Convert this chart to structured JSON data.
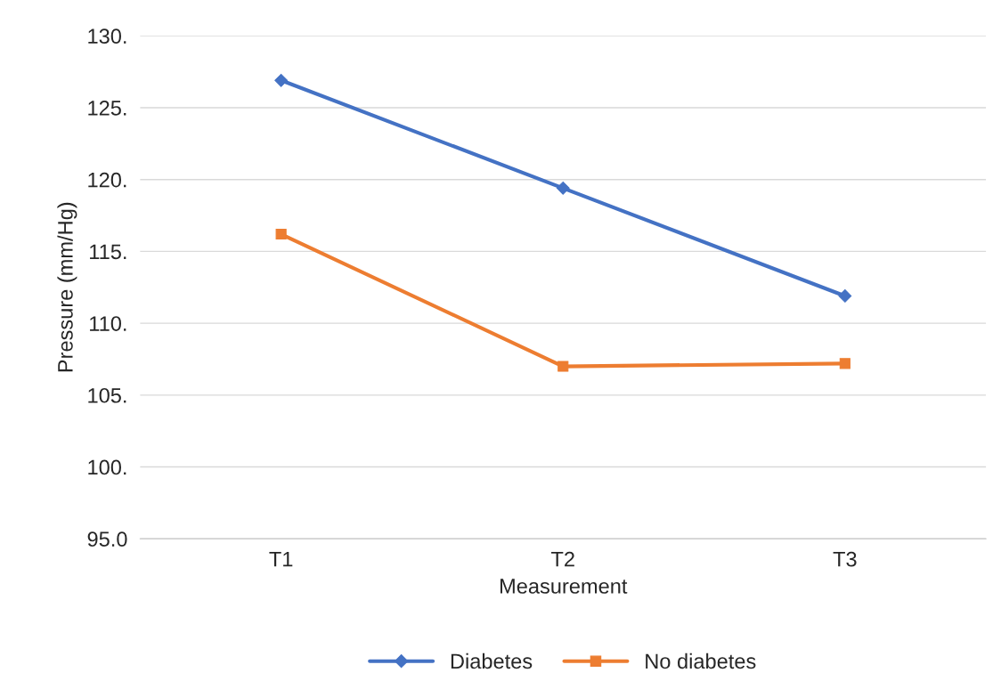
{
  "chart_data": {
    "type": "line",
    "xlabel": "Measurement",
    "ylabel": "Pressure (mm/Hg)",
    "categories": [
      "T1",
      "T2",
      "T3"
    ],
    "series": [
      {
        "name": "Diabetes",
        "color": "#4472c4",
        "marker": "diamond",
        "values": [
          126.9,
          119.4,
          111.9
        ]
      },
      {
        "name": "No diabetes",
        "color": "#ed7d31",
        "marker": "square",
        "values": [
          116.2,
          107.0,
          107.2
        ]
      }
    ],
    "ylim": [
      95,
      130
    ],
    "yticks": [
      {
        "value": 95,
        "label": "95.0"
      },
      {
        "value": 100,
        "label": "100."
      },
      {
        "value": 105,
        "label": "105."
      },
      {
        "value": 110,
        "label": "110."
      },
      {
        "value": 115,
        "label": "115."
      },
      {
        "value": 120,
        "label": "120."
      },
      {
        "value": 125,
        "label": "125."
      },
      {
        "value": 130,
        "label": "130."
      }
    ],
    "grid": "y",
    "legend": "bottom",
    "line_style": "solid"
  }
}
